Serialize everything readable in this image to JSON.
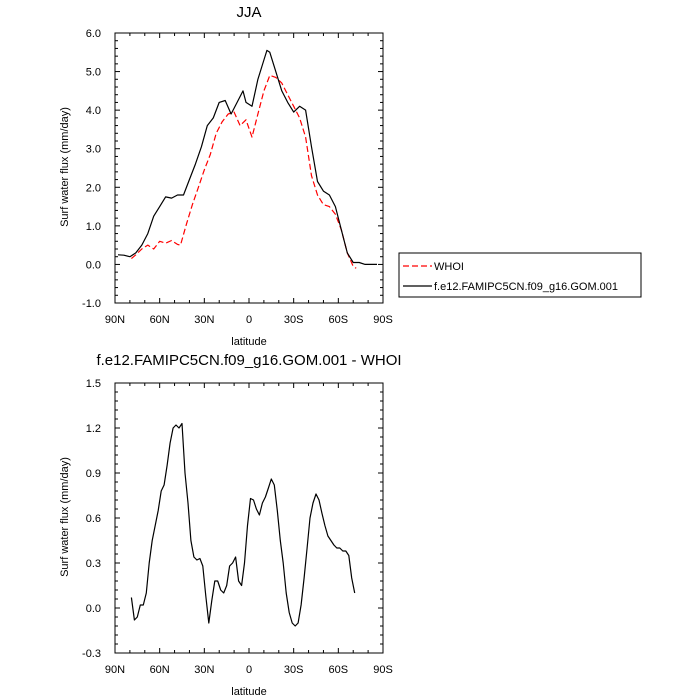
{
  "chart_data": [
    {
      "type": "line",
      "title": "JJA",
      "xlabel": "latitude",
      "ylabel": "Surf water flux (mm/day)",
      "xlim": [
        90,
        -90
      ],
      "ylim": [
        -1.0,
        6.0
      ],
      "x_ticks": [
        90,
        60,
        30,
        0,
        -30,
        -60,
        -90
      ],
      "x_tick_labels": [
        "90N",
        "60N",
        "30N",
        "0",
        "30S",
        "60S",
        "90S"
      ],
      "y_ticks": [
        -1.0,
        0.0,
        1.0,
        2.0,
        3.0,
        4.0,
        5.0,
        6.0
      ],
      "y_tick_labels": [
        "-1.0",
        "0.0",
        "1.0",
        "2.0",
        "3.0",
        "4.0",
        "5.0",
        "6.0"
      ],
      "legend": {
        "placement": "right"
      },
      "series": [
        {
          "name": "WHOI",
          "color": "#ff0000",
          "dash": "dashed",
          "x": [
            79,
            76,
            72,
            68,
            64,
            60,
            56,
            52,
            48,
            46,
            42,
            38,
            34,
            30,
            26,
            22,
            18,
            14,
            10,
            6,
            2,
            -2,
            -6,
            -10,
            -14,
            -18,
            -22,
            -26,
            -30,
            -34,
            -38,
            -42,
            -46,
            -50,
            -54,
            -58,
            -62,
            -66,
            -70,
            -72
          ],
          "values": [
            0.15,
            0.25,
            0.4,
            0.5,
            0.4,
            0.6,
            0.55,
            0.62,
            0.52,
            0.5,
            1.05,
            1.55,
            2.0,
            2.45,
            2.85,
            3.4,
            3.7,
            3.9,
            3.95,
            3.6,
            3.75,
            3.3,
            3.9,
            4.5,
            4.9,
            4.85,
            4.7,
            4.4,
            4.1,
            3.8,
            3.3,
            2.3,
            1.8,
            1.55,
            1.5,
            1.3,
            0.9,
            0.3,
            -0.05,
            -0.1
          ]
        },
        {
          "name": "f.e12.FAMIPC5CN.f09_g16.GOM.001",
          "color": "#000000",
          "dash": "solid",
          "x": [
            88,
            84,
            80,
            76,
            72,
            68,
            64,
            60,
            56,
            52,
            48,
            44,
            40,
            36,
            32,
            28,
            24,
            20,
            16,
            12,
            8,
            4,
            2,
            -2,
            -6,
            -10,
            -12,
            -14,
            -18,
            -22,
            -26,
            -30,
            -34,
            -38,
            -42,
            -46,
            -50,
            -54,
            -58,
            -62,
            -66,
            -70,
            -74,
            -78,
            -82,
            -86
          ],
          "values": [
            0.25,
            0.24,
            0.2,
            0.3,
            0.5,
            0.8,
            1.25,
            1.5,
            1.75,
            1.72,
            1.8,
            1.8,
            2.2,
            2.6,
            3.05,
            3.6,
            3.8,
            4.2,
            4.25,
            3.9,
            4.2,
            4.5,
            4.2,
            4.1,
            4.8,
            5.3,
            5.55,
            5.5,
            5.0,
            4.5,
            4.2,
            3.95,
            4.1,
            4.0,
            3.05,
            2.15,
            1.9,
            1.8,
            1.5,
            0.9,
            0.3,
            0.05,
            0.05,
            0.0,
            0.0,
            0.0
          ]
        }
      ]
    },
    {
      "type": "line",
      "title": "f.e12.FAMIPC5CN.f09_g16.GOM.001 - WHOI",
      "xlabel": "latitude",
      "ylabel": "Surf water flux (mm/day)",
      "xlim": [
        90,
        -90
      ],
      "ylim": [
        -0.3,
        1.5
      ],
      "x_ticks": [
        90,
        60,
        30,
        0,
        -30,
        -60,
        -90
      ],
      "x_tick_labels": [
        "90N",
        "60N",
        "30N",
        "0",
        "30S",
        "60S",
        "90S"
      ],
      "y_ticks": [
        -0.3,
        0.0,
        0.3,
        0.6,
        0.9,
        1.2,
        1.5
      ],
      "y_tick_labels": [
        "-0.3",
        "0.0",
        "0.3",
        "0.6",
        "0.9",
        "1.2",
        "1.5"
      ],
      "series": [
        {
          "color": "#000000",
          "dash": "solid",
          "x": [
            79,
            77,
            75,
            73,
            71,
            69,
            67,
            65,
            63,
            61,
            59,
            57,
            55,
            53,
            51,
            49,
            47,
            45,
            43,
            41,
            39,
            37,
            35,
            33,
            31,
            29,
            27,
            25,
            23,
            21,
            19,
            17,
            15,
            13,
            11,
            9,
            7,
            5,
            3,
            1,
            -1,
            -3,
            -5,
            -7,
            -9,
            -11,
            -13,
            -15,
            -17,
            -19,
            -21,
            -23,
            -25,
            -27,
            -29,
            -31,
            -33,
            -35,
            -37,
            -39,
            -41,
            -43,
            -45,
            -47,
            -49,
            -51,
            -53,
            -55,
            -57,
            -59,
            -61,
            -63,
            -65,
            -67,
            -69,
            -71
          ],
          "values": [
            0.07,
            -0.08,
            -0.06,
            0.02,
            0.02,
            0.1,
            0.3,
            0.45,
            0.55,
            0.65,
            0.78,
            0.82,
            0.95,
            1.1,
            1.2,
            1.22,
            1.2,
            1.23,
            0.9,
            0.7,
            0.45,
            0.34,
            0.32,
            0.33,
            0.28,
            0.08,
            -0.1,
            0.05,
            0.18,
            0.18,
            0.12,
            0.1,
            0.15,
            0.28,
            0.3,
            0.34,
            0.18,
            0.15,
            0.3,
            0.55,
            0.73,
            0.72,
            0.66,
            0.62,
            0.7,
            0.74,
            0.8,
            0.86,
            0.82,
            0.65,
            0.45,
            0.3,
            0.1,
            -0.03,
            -0.1,
            -0.12,
            -0.1,
            0.02,
            0.2,
            0.4,
            0.6,
            0.7,
            0.76,
            0.72,
            0.63,
            0.55,
            0.48,
            0.45,
            0.42,
            0.4,
            0.4,
            0.38,
            0.38,
            0.35,
            0.2,
            0.1
          ]
        }
      ]
    }
  ]
}
